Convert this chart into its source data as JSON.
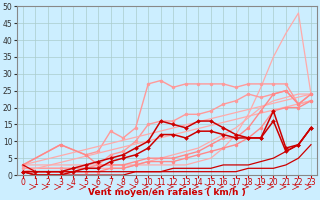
{
  "bg_color": "#cceeff",
  "grid_color": "#aacccc",
  "xlabel": "Vent moyen/en rafales ( km/h )",
  "xlabel_color": "#cc0000",
  "xlabel_fontsize": 6.5,
  "xtick_fontsize": 5.5,
  "ytick_fontsize": 5.5,
  "xlim": [
    -0.5,
    23.5
  ],
  "ylim": [
    0,
    50
  ],
  "yticks": [
    0,
    5,
    10,
    15,
    20,
    25,
    30,
    35,
    40,
    45,
    50
  ],
  "xticks": [
    0,
    1,
    2,
    3,
    4,
    5,
    6,
    7,
    8,
    9,
    10,
    11,
    12,
    13,
    14,
    15,
    16,
    17,
    18,
    19,
    20,
    21,
    22,
    23
  ],
  "lines": [
    {
      "x": [
        0,
        5,
        6,
        7,
        8,
        9,
        10,
        11,
        12,
        13,
        14,
        15,
        16,
        17,
        18,
        19,
        20,
        21,
        22,
        23
      ],
      "y": [
        3,
        3,
        3,
        3,
        3,
        3,
        3,
        3,
        3,
        3,
        4,
        5,
        8,
        12,
        18,
        26,
        35,
        42,
        48,
        24
      ],
      "color": "#ffaaaa",
      "lw": 0.9,
      "marker": null
    },
    {
      "x": [
        0,
        5,
        6,
        7,
        8,
        9,
        10,
        11,
        12,
        13,
        14,
        15,
        16,
        17,
        18,
        19,
        20,
        21,
        22,
        23
      ],
      "y": [
        2,
        2,
        2,
        2,
        2,
        3,
        4,
        5,
        6,
        7,
        8,
        10,
        12,
        14,
        17,
        20,
        22,
        23,
        24,
        24
      ],
      "color": "#ffaaaa",
      "lw": 0.9,
      "marker": null
    },
    {
      "x": [
        0,
        3,
        5,
        6,
        7,
        8,
        9,
        10,
        11,
        12,
        13,
        14,
        15,
        16,
        17,
        18,
        19,
        20,
        21,
        22,
        23
      ],
      "y": [
        3,
        9,
        6,
        7,
        13,
        11,
        14,
        27,
        28,
        26,
        27,
        27,
        27,
        27,
        26,
        27,
        27,
        27,
        27,
        21,
        24
      ],
      "color": "#ff9999",
      "lw": 1.0,
      "marker": "o",
      "ms": 2.2
    },
    {
      "x": [
        0,
        3,
        5,
        6,
        7,
        8,
        9,
        10,
        11,
        12,
        13,
        14,
        15,
        16,
        17,
        18,
        19,
        20,
        21,
        22,
        23
      ],
      "y": [
        2,
        2,
        2,
        3,
        6,
        7,
        10,
        15,
        16,
        16,
        18,
        18,
        19,
        21,
        22,
        24,
        23,
        24,
        25,
        21,
        22
      ],
      "color": "#ff9999",
      "lw": 1.0,
      "marker": "o",
      "ms": 2.2
    },
    {
      "x": [
        0,
        23
      ],
      "y": [
        3,
        24
      ],
      "color": "#ffaaaa",
      "lw": 0.9,
      "marker": null
    },
    {
      "x": [
        0,
        23
      ],
      "y": [
        1,
        22
      ],
      "color": "#ffaaaa",
      "lw": 0.9,
      "marker": null
    },
    {
      "x": [
        0,
        3,
        5,
        6,
        7,
        8,
        9,
        10,
        11,
        12,
        13,
        14,
        15,
        16,
        17,
        18,
        19,
        20,
        21,
        22,
        23
      ],
      "y": [
        3,
        9,
        6,
        3,
        3,
        3,
        4,
        5,
        5,
        5,
        6,
        7,
        9,
        11,
        11,
        14,
        19,
        24,
        25,
        21,
        24
      ],
      "color": "#ff8888",
      "lw": 1.0,
      "marker": "o",
      "ms": 2.2
    },
    {
      "x": [
        0,
        3,
        5,
        6,
        7,
        8,
        9,
        10,
        11,
        12,
        13,
        14,
        15,
        16,
        17,
        18,
        19,
        20,
        21,
        22,
        23
      ],
      "y": [
        1,
        1,
        1,
        1,
        2,
        2,
        3,
        4,
        4,
        4,
        5,
        6,
        7,
        8,
        9,
        11,
        14,
        19,
        20,
        20,
        22
      ],
      "color": "#ff8888",
      "lw": 1.0,
      "marker": "o",
      "ms": 2.2
    },
    {
      "x": [
        0,
        1,
        2,
        3,
        4,
        5,
        6,
        7,
        8,
        9,
        10,
        11,
        12,
        13,
        14,
        15,
        16,
        17,
        18,
        19,
        20,
        21,
        22,
        23
      ],
      "y": [
        1,
        1,
        1,
        1,
        2,
        3,
        4,
        5,
        6,
        8,
        10,
        16,
        15,
        14,
        16,
        16,
        14,
        12,
        11,
        11,
        19,
        8,
        9,
        14
      ],
      "color": "#cc0000",
      "lw": 1.1,
      "marker": "D",
      "ms": 2.0
    },
    {
      "x": [
        0,
        1,
        2,
        3,
        4,
        5,
        6,
        7,
        8,
        9,
        10,
        11,
        12,
        13,
        14,
        15,
        16,
        17,
        18,
        19,
        20,
        21,
        22,
        23
      ],
      "y": [
        1,
        0,
        0,
        0,
        1,
        2,
        2,
        4,
        5,
        6,
        8,
        12,
        12,
        11,
        13,
        13,
        12,
        11,
        11,
        11,
        16,
        7,
        9,
        14
      ],
      "color": "#cc0000",
      "lw": 1.1,
      "marker": "D",
      "ms": 2.0
    },
    {
      "x": [
        0,
        1,
        2,
        3,
        4,
        5,
        6,
        7,
        8,
        9,
        10,
        11,
        12,
        13,
        14,
        15,
        16,
        17,
        18,
        19,
        20,
        21,
        22,
        23
      ],
      "y": [
        3,
        1,
        1,
        1,
        1,
        1,
        1,
        1,
        1,
        1,
        1,
        1,
        2,
        2,
        2,
        2,
        3,
        3,
        3,
        4,
        5,
        7,
        9,
        14
      ],
      "color": "#cc0000",
      "lw": 0.9,
      "marker": null
    },
    {
      "x": [
        0,
        1,
        2,
        3,
        4,
        5,
        6,
        7,
        8,
        9,
        10,
        11,
        12,
        13,
        14,
        15,
        16,
        17,
        18,
        19,
        20,
        21,
        22,
        23
      ],
      "y": [
        1,
        0,
        0,
        0,
        0,
        0,
        0,
        0,
        0,
        1,
        1,
        1,
        1,
        1,
        1,
        1,
        1,
        1,
        2,
        2,
        2,
        3,
        5,
        9
      ],
      "color": "#cc0000",
      "lw": 0.9,
      "marker": null
    }
  ]
}
